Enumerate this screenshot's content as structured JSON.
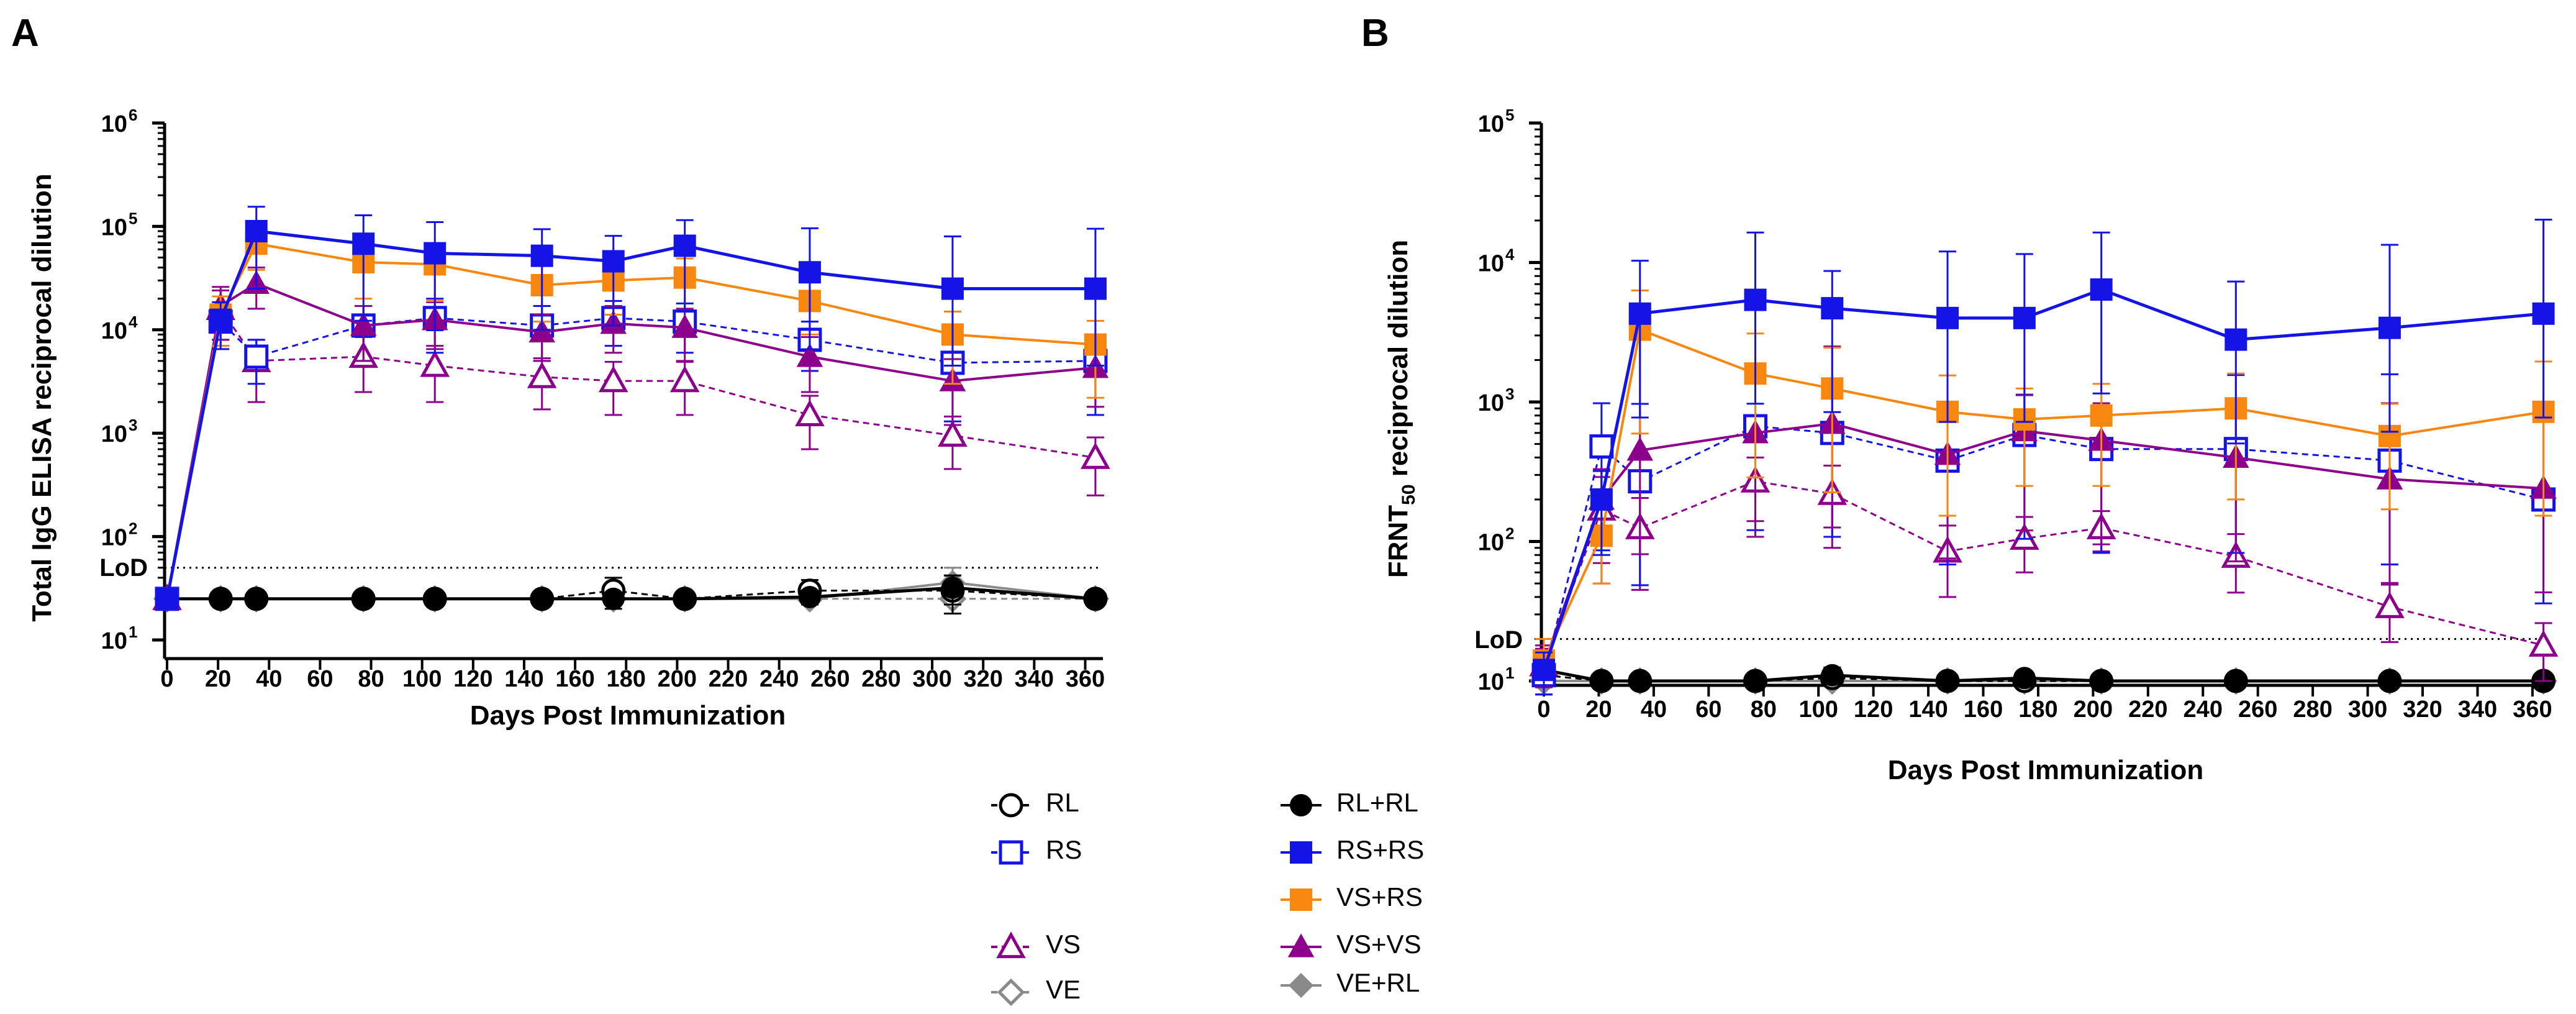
{
  "chart_data": [
    {
      "panel": "A",
      "type": "line",
      "scale": "log",
      "ylabel": "Total IgG ELISA reciprocal dilution",
      "xlabel": "Days Post Immunization",
      "xlim": [
        0,
        365
      ],
      "ylim_exp": [
        1,
        6
      ],
      "x_ticks": [
        0,
        20,
        40,
        60,
        80,
        100,
        120,
        140,
        160,
        180,
        200,
        220,
        240,
        260,
        280,
        300,
        320,
        340,
        360
      ],
      "y_ticks": [
        {
          "exp": 1,
          "label": "10",
          "sup": "1"
        },
        {
          "exp": 2,
          "label": "10",
          "sup": "2"
        },
        {
          "exp": 3,
          "label": "10",
          "sup": "3"
        },
        {
          "exp": 4,
          "label": "10",
          "sup": "4"
        },
        {
          "exp": 5,
          "label": "10",
          "sup": "5"
        },
        {
          "exp": 6,
          "label": "10",
          "sup": "6"
        }
      ],
      "lod": {
        "label": "LoD",
        "value": 50
      },
      "x": [
        0,
        21,
        35,
        77,
        105,
        147,
        175,
        203,
        252,
        308,
        364
      ],
      "series": [
        {
          "name": "VE",
          "style": "VE",
          "values": [
            25,
            25,
            25,
            25,
            25,
            25,
            25,
            25,
            25,
            25,
            25
          ],
          "err": [
            0,
            0,
            0,
            0,
            0,
            0,
            0,
            0,
            0,
            0,
            0
          ]
        },
        {
          "name": "VE+RL",
          "style": "VERL",
          "values": [
            25,
            25,
            25,
            25,
            25,
            25,
            25,
            25,
            25,
            36,
            25
          ],
          "err": [
            0,
            0,
            0,
            0,
            0,
            0,
            0,
            0,
            0,
            14,
            0
          ]
        },
        {
          "name": "RL",
          "style": "RL",
          "values": [
            25,
            25,
            25,
            25,
            25,
            25,
            30,
            25,
            30,
            30,
            25
          ],
          "err": [
            0,
            0,
            0,
            0,
            0,
            0,
            10,
            0,
            8,
            12,
            0
          ]
        },
        {
          "name": "RL+RL",
          "style": "RLRL",
          "values": [
            25,
            25,
            25,
            25,
            25,
            25,
            25,
            25,
            26,
            32,
            25
          ],
          "err": [
            0,
            0,
            0,
            0,
            0,
            0,
            0,
            0,
            4,
            10,
            0
          ]
        },
        {
          "name": "VS",
          "style": "VS",
          "values": [
            25,
            16000,
            5000,
            5500,
            4500,
            3500,
            3200,
            3200,
            1500,
            950,
            580
          ],
          "err": [
            0,
            8000,
            3000,
            3000,
            2500,
            1800,
            1700,
            1700,
            800,
            500,
            330
          ]
        },
        {
          "name": "RS",
          "style": "RS",
          "values": [
            25,
            12000,
            5500,
            11000,
            13000,
            11000,
            13000,
            12000,
            8000,
            4800,
            5000
          ],
          "err": [
            0,
            5000,
            2500,
            6000,
            7000,
            6000,
            6000,
            6000,
            4000,
            3500,
            3500
          ]
        },
        {
          "name": "VS+VS",
          "style": "VSVS",
          "values": [
            25,
            17000,
            28000,
            11000,
            12500,
            9500,
            11500,
            10500,
            5500,
            3200,
            4300
          ],
          "err": [
            0,
            9000,
            12000,
            6000,
            6000,
            4500,
            5500,
            5500,
            3000,
            2000,
            2500
          ]
        },
        {
          "name": "VS+RS",
          "style": "VSRS",
          "values": [
            25,
            14000,
            68000,
            45000,
            43000,
            27000,
            30000,
            32000,
            19000,
            9000,
            7200
          ],
          "err": [
            0,
            7000,
            30000,
            25000,
            24000,
            15000,
            16000,
            17000,
            10000,
            6000,
            5000
          ]
        },
        {
          "name": "RS+RS",
          "style": "RSRS",
          "values": [
            25,
            12500,
            90000,
            68000,
            55000,
            52000,
            46000,
            65000,
            36000,
            25000,
            25000
          ],
          "err": [
            0,
            6000,
            65000,
            60000,
            55000,
            42000,
            35000,
            50000,
            60000,
            55000,
            70000
          ]
        }
      ]
    },
    {
      "panel": "B",
      "type": "line",
      "scale": "log",
      "ylabel": "FRNT50 reciprocal dilution",
      "ylabel_main": "FRNT",
      "ylabel_sub": "50",
      "ylabel_rest": " reciprocal dilution",
      "xlabel": "Days Post Immunization",
      "xlim": [
        0,
        365
      ],
      "ylim_exp": [
        1,
        5
      ],
      "x_ticks": [
        0,
        20,
        40,
        60,
        80,
        100,
        120,
        140,
        160,
        180,
        200,
        220,
        240,
        260,
        280,
        300,
        320,
        340,
        360
      ],
      "y_ticks": [
        {
          "exp": 1,
          "label": "10",
          "sup": "1"
        },
        {
          "exp": 2,
          "label": "10",
          "sup": "2"
        },
        {
          "exp": 3,
          "label": "10",
          "sup": "3"
        },
        {
          "exp": 4,
          "label": "10",
          "sup": "4"
        },
        {
          "exp": 5,
          "label": "10",
          "sup": "5"
        }
      ],
      "lod": {
        "label": "LoD",
        "value": 20
      },
      "x": [
        0,
        21,
        35,
        77,
        105,
        147,
        175,
        203,
        252,
        308,
        364
      ],
      "series": [
        {
          "name": "VE",
          "style": "VE",
          "values": [
            10,
            10,
            10,
            10,
            10,
            10,
            10,
            10,
            10,
            10,
            10
          ],
          "err": [
            0,
            0,
            0,
            0,
            0,
            0,
            0,
            0,
            0,
            0,
            0
          ]
        },
        {
          "name": "VE+RL",
          "style": "VERL",
          "values": [
            10,
            10,
            10,
            10,
            10,
            10,
            10,
            10,
            10,
            10,
            10
          ],
          "err": [
            0,
            0,
            0,
            0,
            0,
            0,
            0,
            0,
            0,
            0,
            0
          ]
        },
        {
          "name": "RL",
          "style": "RL",
          "values": [
            11,
            10,
            10,
            10,
            10.5,
            10,
            10,
            10,
            10,
            10,
            10
          ],
          "err": [
            0,
            0,
            0,
            0,
            1,
            0,
            0,
            0,
            0,
            0,
            0
          ]
        },
        {
          "name": "RL+RL",
          "style": "RLRL",
          "values": [
            12,
            10,
            10,
            10,
            11,
            10,
            10.5,
            10,
            10,
            10,
            10
          ],
          "err": [
            2,
            0,
            0,
            0,
            1.5,
            0,
            1,
            0,
            0,
            0,
            0
          ]
        },
        {
          "name": "VS",
          "style": "VS",
          "values": [
            13,
            170,
            125,
            270,
            220,
            85,
            105,
            125,
            78,
            34,
            18
          ],
          "err": [
            5,
            120,
            80,
            130,
            130,
            45,
            45,
            40,
            35,
            15,
            8
          ]
        },
        {
          "name": "RS",
          "style": "RS",
          "values": [
            11,
            480,
            270,
            670,
            600,
            380,
            580,
            460,
            460,
            380,
            200
          ],
          "err": [
            3,
            500,
            700,
            700,
            800,
            400,
            550,
            450,
            1100,
            1200,
            600
          ]
        },
        {
          "name": "VS+VS",
          "style": "VSVS",
          "values": [
            13,
            200,
            450,
            600,
            700,
            420,
            620,
            530,
            400,
            280,
            240
          ],
          "err": [
            4,
            130,
            2500,
            800,
            1800,
            450,
            500,
            450,
            600,
            700,
            700
          ]
        },
        {
          "name": "VS+RS",
          "style": "VSRS",
          "values": [
            14,
            110,
            3300,
            1600,
            1250,
            850,
            750,
            800,
            900,
            570,
            850
          ],
          "err": [
            6,
            60,
            3000,
            1500,
            1200,
            700,
            500,
            550,
            700,
            400,
            1100
          ]
        },
        {
          "name": "RS+RS",
          "style": "RSRS",
          "values": [
            12,
            200,
            4300,
            5400,
            4700,
            4000,
            4000,
            6400,
            2800,
            3400,
            4300
          ],
          "err": [
            4,
            120,
            6000,
            11000,
            4000,
            8000,
            7500,
            10000,
            4500,
            10000,
            16000
          ]
        }
      ]
    }
  ],
  "legend": {
    "left": [
      {
        "name": "RL",
        "style": "RL"
      },
      {
        "name": "RS",
        "style": "RS"
      },
      {
        "name": "VS",
        "style": "VS"
      },
      {
        "name": "VE",
        "style": "VE"
      }
    ],
    "right": [
      {
        "name": "RL+RL",
        "style": "RLRL"
      },
      {
        "name": "RS+RS",
        "style": "RSRS"
      },
      {
        "name": "VS+RS",
        "style": "VSRS"
      },
      {
        "name": "VS+VS",
        "style": "VSVS"
      },
      {
        "name": "VE+RL",
        "style": "VERL"
      }
    ]
  },
  "colors": {
    "RL": "#000000",
    "RLRL": "#000000",
    "RS": "#1414e6",
    "RSRS": "#1414e6",
    "VSRS": "#f7870f",
    "VS": "#8c008c",
    "VSVS": "#8c008c",
    "VE": "#8a8a8a",
    "VERL": "#8a8a8a"
  }
}
